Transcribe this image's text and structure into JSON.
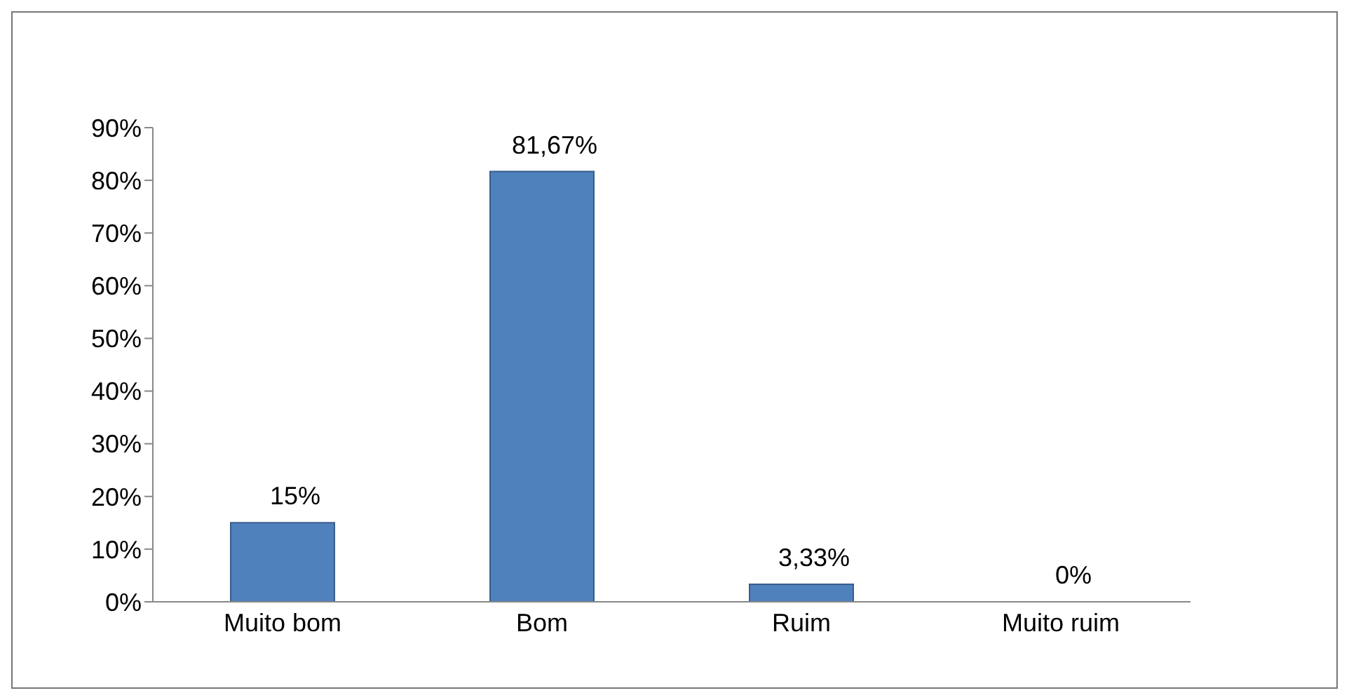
{
  "chart_data": {
    "type": "bar",
    "categories": [
      "Muito bom",
      "Bom",
      "Ruim",
      "Muito ruim"
    ],
    "values": [
      15,
      81.67,
      3.33,
      0
    ],
    "value_labels": [
      "15%",
      "81,67%",
      "3,33%",
      "0%"
    ],
    "color": "#4f81bd",
    "ylim": [
      0,
      90
    ],
    "yticks": [
      {
        "value": 0,
        "label": "0%"
      },
      {
        "value": 10,
        "label": "10%"
      },
      {
        "value": 20,
        "label": "20%"
      },
      {
        "value": 30,
        "label": "30%"
      },
      {
        "value": 40,
        "label": "40%"
      },
      {
        "value": 50,
        "label": "50%"
      },
      {
        "value": 60,
        "label": "60%"
      },
      {
        "value": 70,
        "label": "70%"
      },
      {
        "value": 80,
        "label": "80%"
      },
      {
        "value": 90,
        "label": "90%"
      }
    ]
  }
}
